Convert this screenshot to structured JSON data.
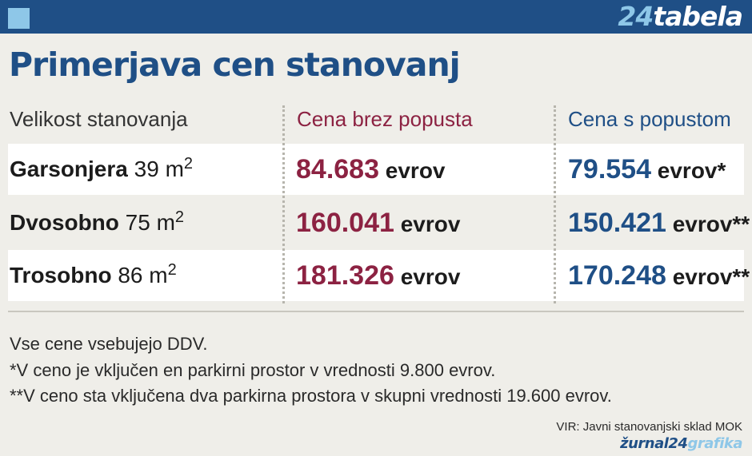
{
  "header": {
    "brand_number": "24",
    "brand_word": "tabela"
  },
  "title": "Primerjava cen stanovanj",
  "chart_data": {
    "type": "table",
    "columns": [
      "Velikost stanovanja",
      "Cena brez popusta",
      "Cena s popustom"
    ],
    "rows": [
      {
        "name": "Garsonjera",
        "size": "39 m",
        "size_sup": "2",
        "price_full": "84.683",
        "price_discount": "79.554",
        "unit_full": "evrov",
        "unit_discount": "evrov*"
      },
      {
        "name": "Dvosobno",
        "size": "75 m",
        "size_sup": "2",
        "price_full": "160.041",
        "price_discount": "150.421",
        "unit_full": "evrov",
        "unit_discount": "evrov**"
      },
      {
        "name": "Trosobno",
        "size": "86 m",
        "size_sup": "2",
        "price_full": "181.326",
        "price_discount": "170.248",
        "unit_full": "evrov",
        "unit_discount": "evrov**"
      }
    ]
  },
  "notes": [
    "Vse cene vsebujejo DDV.",
    "*V ceno je vključen en parkirni prostor v vrednosti 9.800 evrov.",
    "**V ceno sta vključena dva parkirna prostora v skupni vrednosti 19.600 evrov."
  ],
  "source": "VIR: Javni stanovanjski sklad MOK",
  "footer_logo": {
    "part1": "žurnal24",
    "part2": "grafika"
  },
  "colors": {
    "brand_blue": "#1f4f86",
    "light_blue": "#8ec7e8",
    "wine": "#8c2242",
    "background": "#efeee9"
  }
}
